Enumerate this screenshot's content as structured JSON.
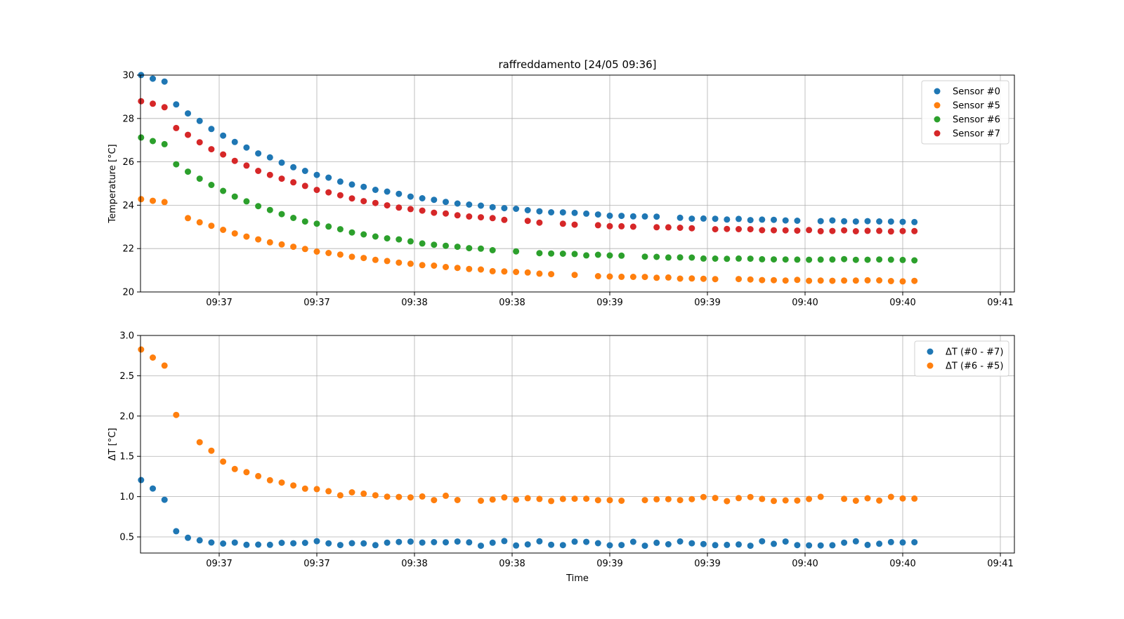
{
  "figure": {
    "colors": {
      "sensor0": "#1f77b4",
      "sensor5": "#ff7f0e",
      "sensor6": "#2ca02c",
      "sensor7": "#d62728",
      "grid": "#b0b0b0"
    }
  },
  "chart_data": [
    {
      "type": "scatter",
      "title": "raffreddamento [24/05 09:36]",
      "xlabel": "",
      "ylabel": "Temperature [°C]",
      "xlim": [
        -0.2,
        4.25
      ],
      "ylim": [
        20,
        30
      ],
      "yticks": [
        20,
        22,
        24,
        26,
        28,
        30
      ],
      "xticks": [
        0.4,
        0.9,
        1.4,
        1.9,
        2.4,
        2.9,
        3.4,
        3.9,
        4.4
      ],
      "xtick_labels": [
        "09:37",
        "09:37",
        "09:38",
        "09:38",
        "09:39",
        "09:39",
        "09:40",
        "09:40",
        "09:41"
      ],
      "grid": true,
      "legend_position": "top-right",
      "x_range": [
        0.0,
        4.0
      ],
      "series": [
        {
          "name": "Sensor #0",
          "color": "#1f77b4",
          "start": 30.0,
          "end": 23.2,
          "rate": 1.25,
          "step": 0.06
        },
        {
          "name": "Sensor #5",
          "color": "#ff7f0e",
          "start": 24.3,
          "end": 20.45,
          "rate": 1.1,
          "step": 0.06
        },
        {
          "name": "Sensor #6",
          "color": "#2ca02c",
          "start": 27.1,
          "end": 21.45,
          "rate": 1.35,
          "step": 0.06
        },
        {
          "name": "Sensor #7",
          "color": "#d62728",
          "start": 28.8,
          "end": 22.75,
          "rate": 1.25,
          "step": 0.06
        }
      ]
    },
    {
      "type": "scatter",
      "title": "",
      "xlabel": "Time",
      "ylabel": "ΔT [°C]",
      "xlim": [
        -0.2,
        4.25
      ],
      "ylim": [
        0.3,
        3.0
      ],
      "yticks": [
        0.5,
        1.0,
        1.5,
        2.0,
        2.5,
        3.0
      ],
      "ytick_labels": [
        "0.5",
        "1.0",
        "1.5",
        "2.0",
        "2.5",
        "3.0"
      ],
      "xticks": [
        0.4,
        0.9,
        1.4,
        1.9,
        2.4,
        2.9,
        3.4,
        3.9,
        4.4
      ],
      "xtick_labels": [
        "09:37",
        "09:37",
        "09:38",
        "09:38",
        "09:39",
        "09:39",
        "09:40",
        "09:40",
        "09:41"
      ],
      "grid": true,
      "legend_position": "top-right",
      "x_range": [
        0.0,
        4.0
      ],
      "series": [
        {
          "name": "ΔT (#0 - #7)",
          "color": "#1f77b4",
          "start": 1.2,
          "end": 0.42,
          "rate": 9.0,
          "step": 0.06
        },
        {
          "name": "ΔT (#6 - #5)",
          "color": "#ff7f0e",
          "start": 2.8,
          "end": 0.97,
          "rate": 3.2,
          "step": 0.06
        }
      ]
    }
  ]
}
